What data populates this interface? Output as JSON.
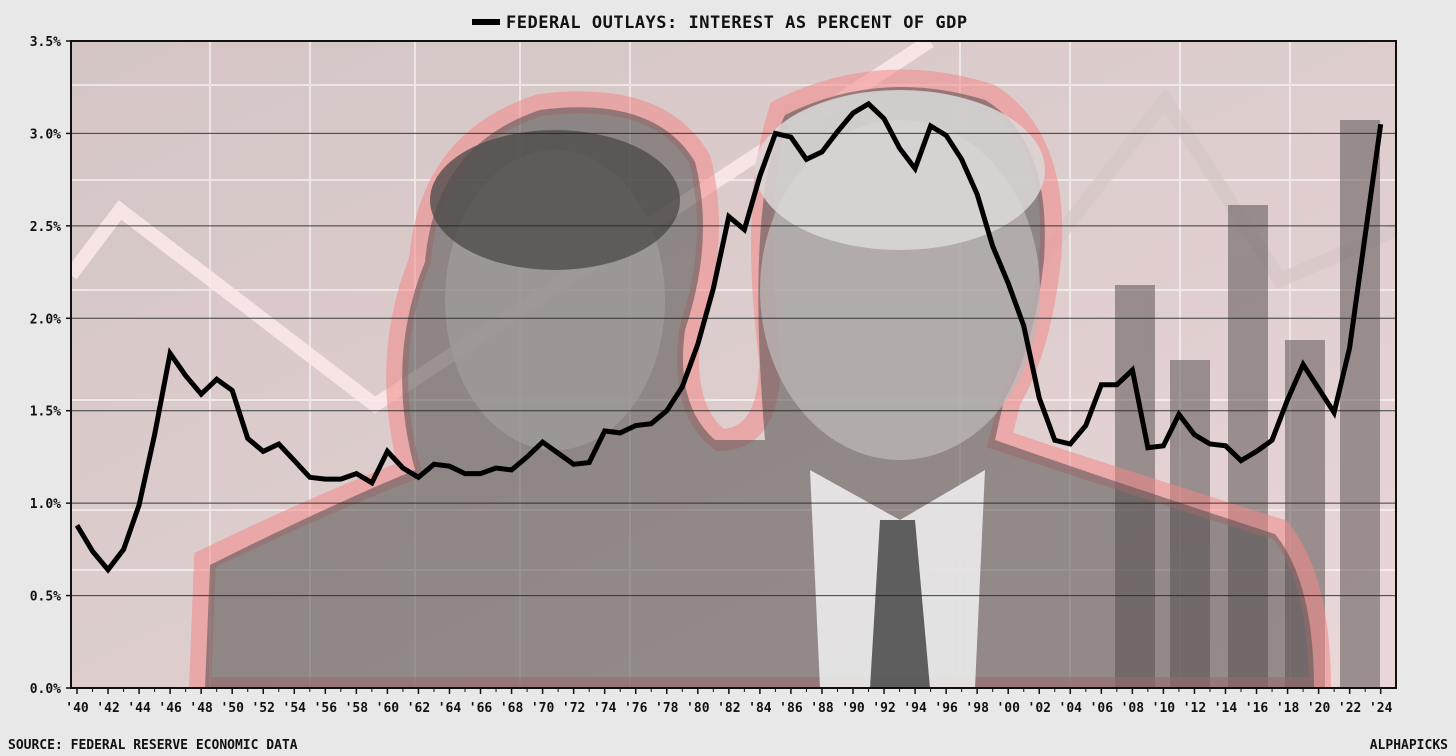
{
  "chart_data": {
    "type": "line",
    "title": "",
    "xlabel": "",
    "ylabel": "",
    "series": [
      {
        "name": "FEDERAL OUTLAYS: INTEREST AS PERCENT OF GDP",
        "color": "#000000",
        "x": [
          1940,
          1941,
          1942,
          1943,
          1944,
          1945,
          1946,
          1947,
          1948,
          1949,
          1950,
          1951,
          1952,
          1953,
          1954,
          1955,
          1956,
          1957,
          1958,
          1959,
          1960,
          1961,
          1962,
          1963,
          1964,
          1965,
          1966,
          1967,
          1968,
          1969,
          1970,
          1971,
          1972,
          1973,
          1974,
          1975,
          1976,
          1977,
          1978,
          1979,
          1980,
          1981,
          1982,
          1983,
          1984,
          1985,
          1986,
          1987,
          1988,
          1989,
          1990,
          1991,
          1992,
          1993,
          1994,
          1995,
          1996,
          1997,
          1998,
          1999,
          2000,
          2001,
          2002,
          2003,
          2004,
          2005,
          2006,
          2007,
          2008,
          2009,
          2010,
          2011,
          2012,
          2013,
          2014,
          2015,
          2016,
          2017,
          2018,
          2019,
          2020,
          2021,
          2022,
          2023,
          2024
        ],
        "values": [
          0.88,
          0.74,
          0.64,
          0.75,
          0.99,
          1.37,
          1.81,
          1.69,
          1.59,
          1.67,
          1.61,
          1.35,
          1.28,
          1.32,
          1.23,
          1.14,
          1.13,
          1.13,
          1.16,
          1.11,
          1.28,
          1.19,
          1.14,
          1.21,
          1.2,
          1.16,
          1.16,
          1.19,
          1.18,
          1.25,
          1.33,
          1.27,
          1.21,
          1.22,
          1.39,
          1.38,
          1.42,
          1.43,
          1.5,
          1.63,
          1.86,
          2.16,
          2.55,
          2.48,
          2.77,
          3.0,
          2.98,
          2.86,
          2.9,
          3.01,
          3.11,
          3.16,
          3.08,
          2.92,
          2.81,
          3.04,
          2.99,
          2.86,
          2.67,
          2.39,
          2.19,
          1.96,
          1.57,
          1.34,
          1.32,
          1.42,
          1.64,
          1.64,
          1.72,
          1.3,
          1.31,
          1.48,
          1.37,
          1.32,
          1.31,
          1.23,
          1.28,
          1.34,
          1.56,
          1.75,
          1.62,
          1.49,
          1.84,
          2.45,
          3.05
        ]
      }
    ],
    "ylim": [
      0,
      3.5
    ],
    "xlim": [
      1940,
      2024.6
    ],
    "y_ticks": [
      0,
      0.5,
      1.0,
      1.5,
      2.0,
      2.5,
      3.0,
      3.5
    ],
    "y_tick_labels": [
      "0.0%",
      "0.5%",
      "1.0%",
      "1.5%",
      "2.0%",
      "2.5%",
      "3.0%",
      "3.5%"
    ],
    "x_ticks": [
      1940,
      1942,
      1944,
      1946,
      1948,
      1950,
      1952,
      1954,
      1956,
      1958,
      1960,
      1962,
      1964,
      1966,
      1968,
      1970,
      1972,
      1974,
      1976,
      1978,
      1980,
      1982,
      1984,
      1986,
      1988,
      1990,
      1992,
      1994,
      1996,
      1998,
      2000,
      2002,
      2004,
      2006,
      2008,
      2010,
      2012,
      2014,
      2016,
      2018,
      2020,
      2022,
      2024
    ],
    "x_tick_labels": [
      "'40",
      "'42",
      "'44",
      "'46",
      "'48",
      "'50",
      "'52",
      "'54",
      "'56",
      "'58",
      "'60",
      "'62",
      "'64",
      "'66",
      "'68",
      "'70",
      "'72",
      "'74",
      "'76",
      "'78",
      "'80",
      "'82",
      "'84",
      "'86",
      "'88",
      "'90",
      "'92",
      "'94",
      "'96",
      "'98",
      "'00",
      "'02",
      "'04",
      "'06",
      "'08",
      "'10",
      "'12",
      "'14",
      "'16",
      "'18",
      "'20",
      "'22",
      "'24"
    ],
    "grid": "horizontal",
    "legend_position": "top-center"
  },
  "footer": {
    "source": "SOURCE: FEDERAL RESERVE ECONOMIC DATA",
    "brand": "ALPHAPICKS"
  },
  "colors": {
    "page_background": "#e8e8e8",
    "plot_background": "#f3d6d6",
    "line": "#000000",
    "gridline": "#222222",
    "accent_red": "#e05a5a"
  }
}
